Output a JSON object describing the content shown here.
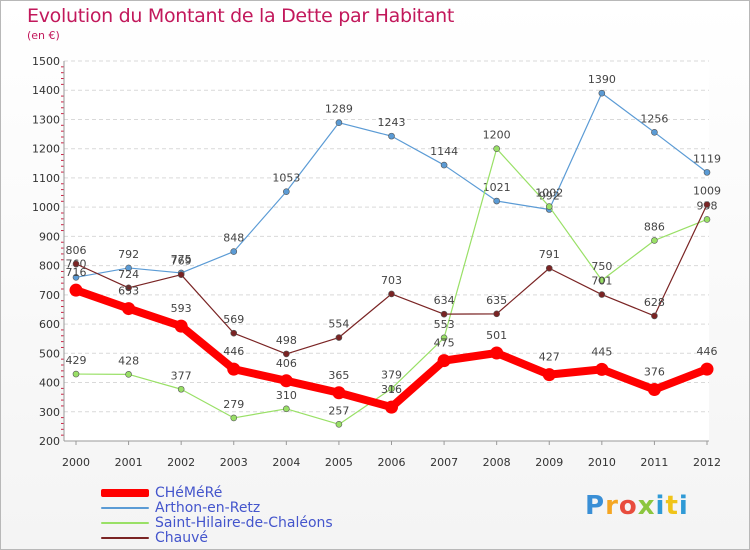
{
  "chart_data": {
    "type": "line",
    "title": "Evolution du Montant de la Dette par Habitant",
    "subtitle": "(en €)",
    "x": [
      "2000",
      "2001",
      "2002",
      "2003",
      "2004",
      "2005",
      "2006",
      "2007",
      "2008",
      "2009",
      "2010",
      "2011",
      "2012"
    ],
    "ylim": [
      200,
      1500
    ],
    "yticks": [
      200,
      300,
      400,
      500,
      600,
      700,
      800,
      900,
      1000,
      1100,
      1200,
      1300,
      1400,
      1500
    ],
    "grid": true,
    "legend_position": "bottom-left",
    "series": [
      {
        "name": "CHéMéRé",
        "color": "#ff0000",
        "values": [
          716,
          653,
          593,
          446,
          406,
          365,
          316,
          475,
          501,
          427,
          445,
          376,
          446
        ]
      },
      {
        "name": "Arthon-en-Retz",
        "color": "#5b9bd5",
        "values": [
          760,
          792,
          775,
          848,
          1053,
          1289,
          1243,
          1144,
          1021,
          992,
          1390,
          1256,
          1119
        ]
      },
      {
        "name": "Saint-Hilaire-de-Chaléons",
        "color": "#99e066",
        "values": [
          429,
          428,
          377,
          279,
          310,
          257,
          379,
          553,
          1200,
          1002,
          750,
          886,
          958
        ]
      },
      {
        "name": "Chauvé",
        "color": "#7a2424",
        "values": [
          806,
          724,
          769,
          569,
          498,
          554,
          703,
          634,
          635,
          791,
          701,
          628,
          1009
        ]
      }
    ]
  },
  "logo": {
    "text": "Proxiti",
    "colors": [
      "#3a8fd6",
      "#f5a623",
      "#e84c3d",
      "#8cc63f",
      "#2f9ad6",
      "#f0c419",
      "#2f9ad6"
    ]
  }
}
